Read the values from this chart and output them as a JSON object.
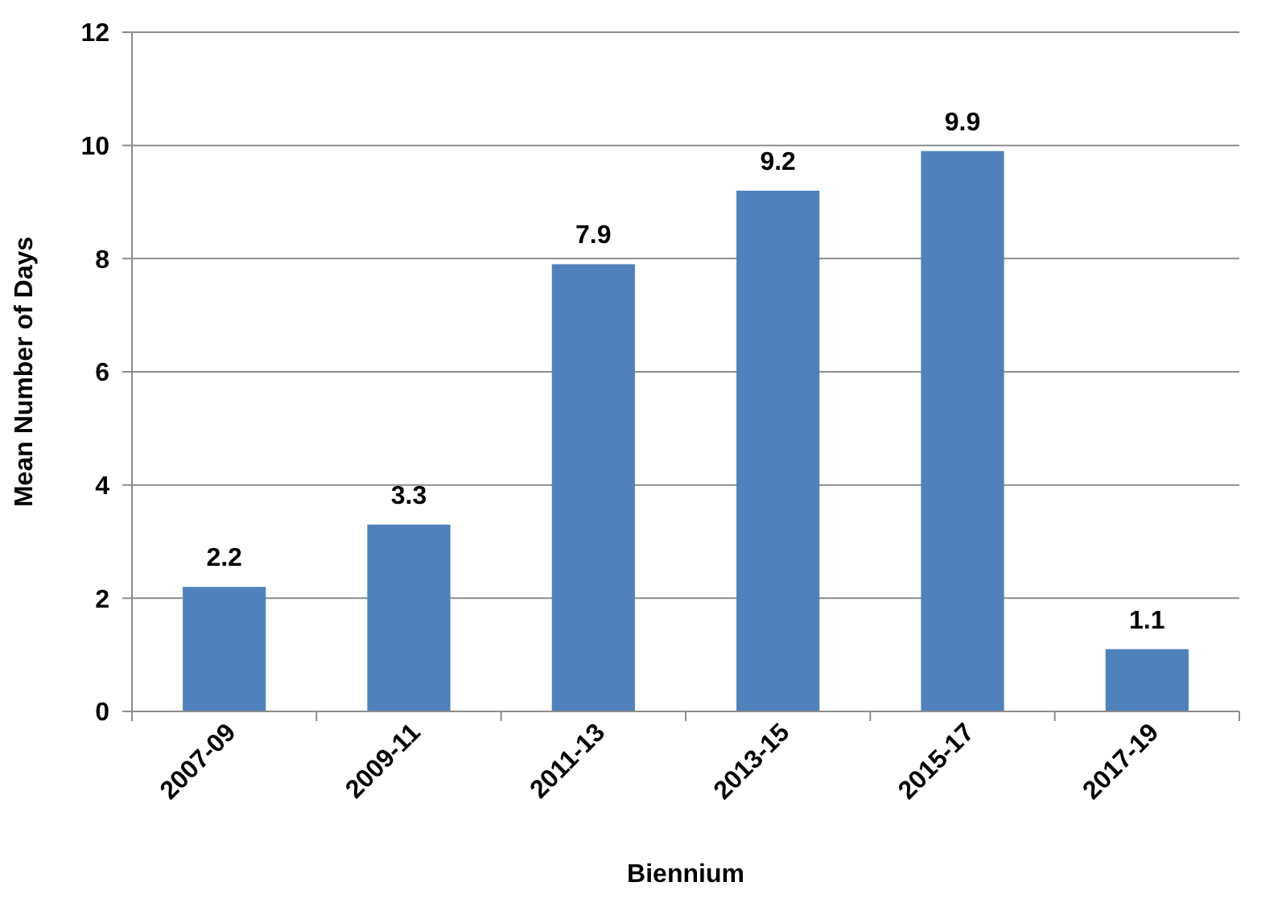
{
  "chart_data": {
    "type": "bar",
    "xlabel": "Biennium",
    "ylabel": "Mean Number of Days",
    "categories": [
      "2007-09",
      "2009-11",
      "2011-13",
      "2013-15",
      "2015-17",
      "2017-19"
    ],
    "values": [
      2.2,
      3.3,
      7.9,
      9.2,
      9.9,
      1.1
    ],
    "color": "#4f81bd",
    "ylim": [
      0,
      12
    ],
    "yticks": [
      0,
      2,
      4,
      6,
      8,
      10,
      12
    ],
    "grid": "y",
    "data_labels": true
  }
}
